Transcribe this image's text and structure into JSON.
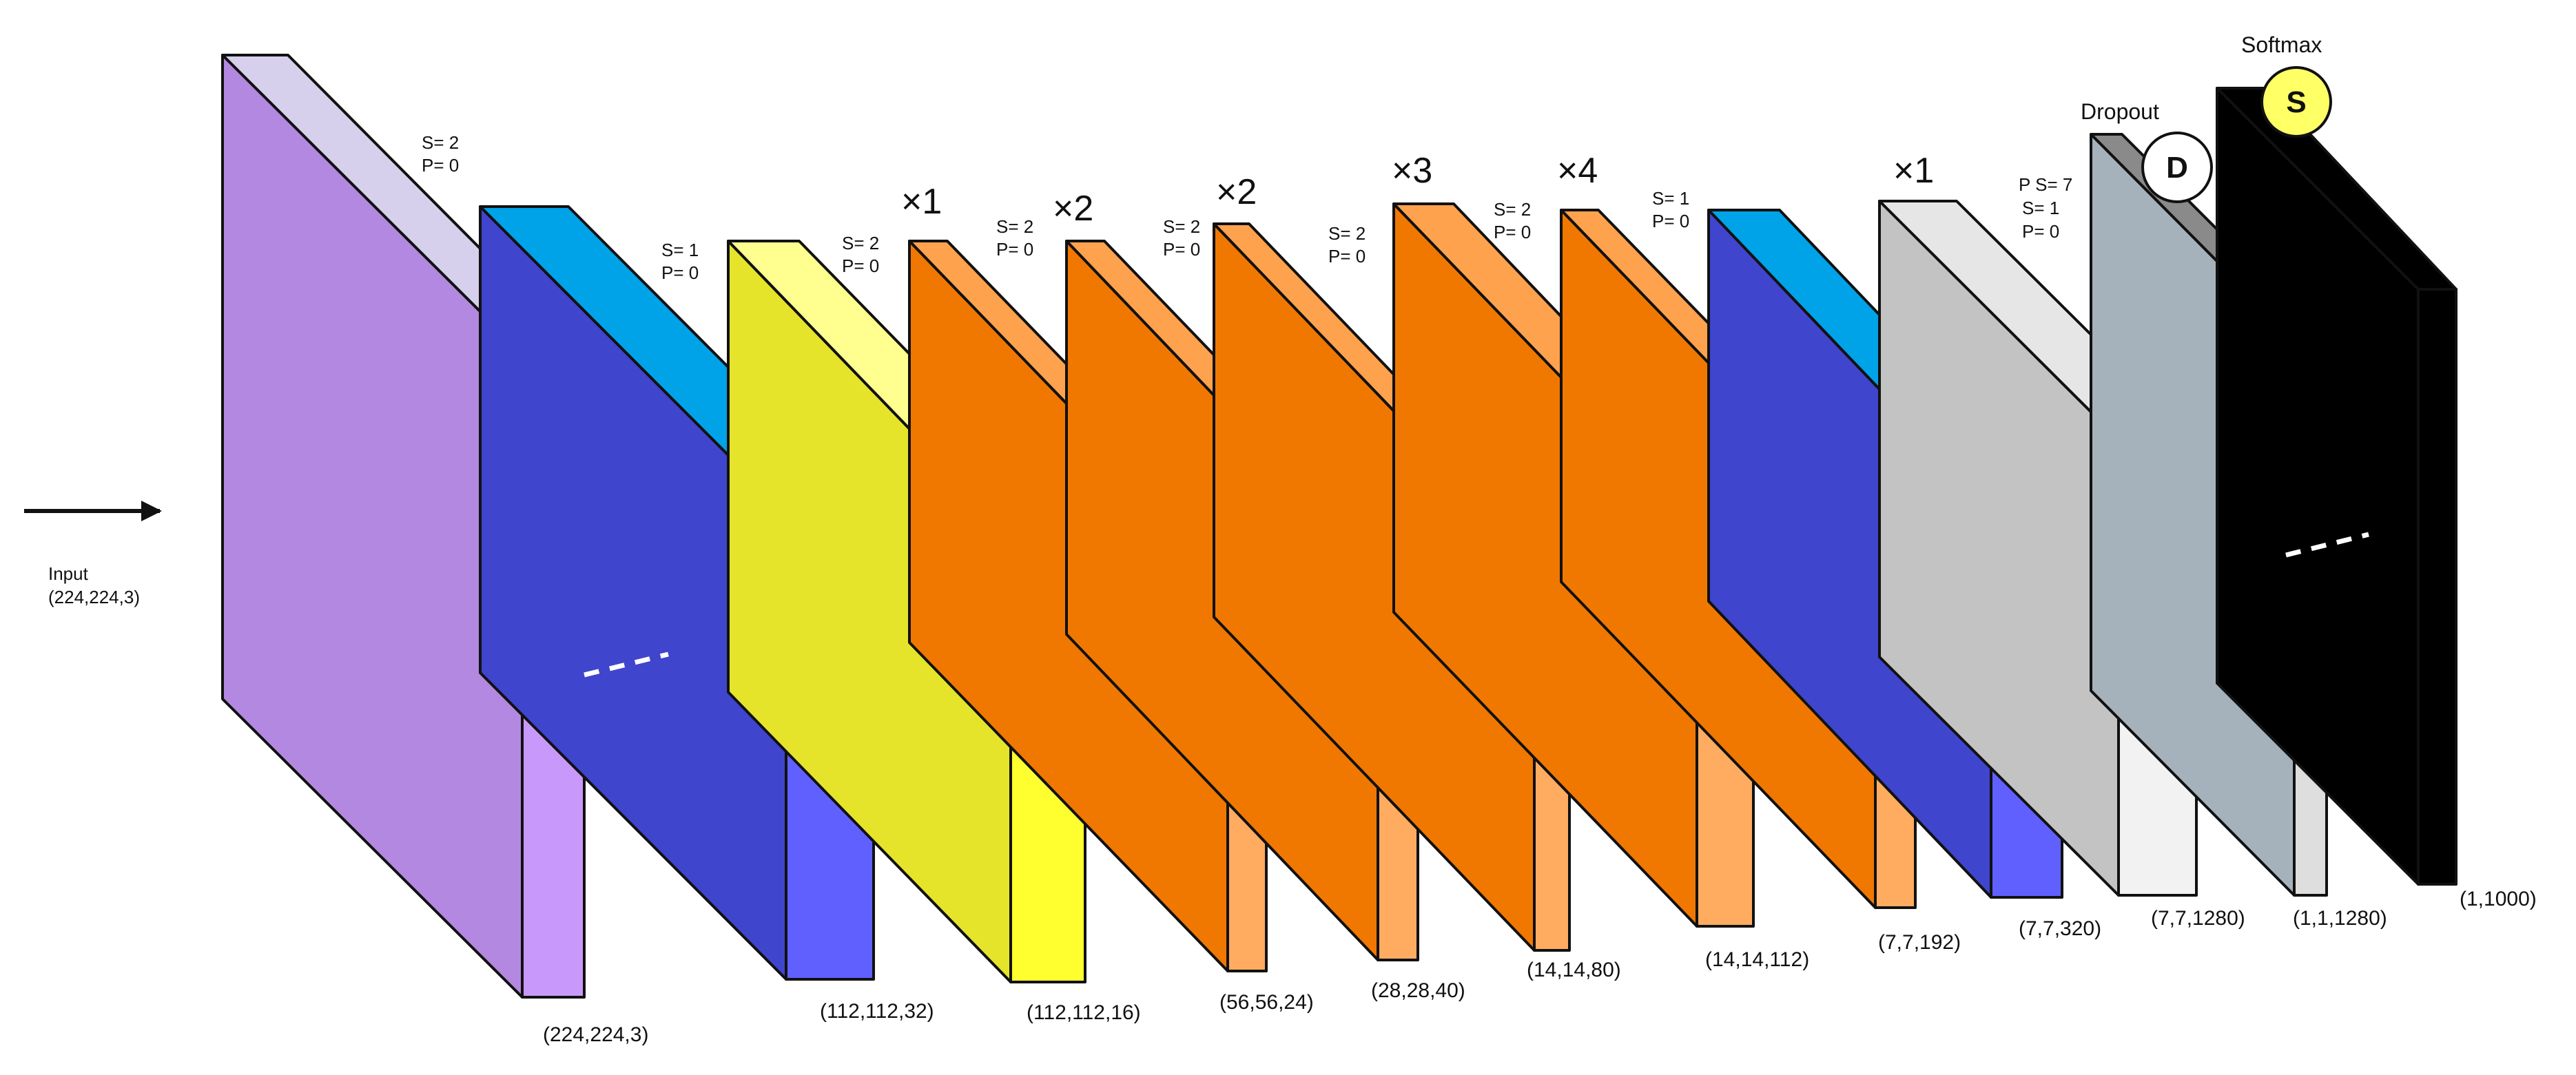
{
  "input": {
    "label": "Input",
    "shape": "(224,224,3)"
  },
  "layers": [
    {
      "id": "l0",
      "front": "#b388e0",
      "top": "#d6d0ec",
      "side": "#c899fa",
      "dim": "(224,224,3)",
      "params": [
        "S= 2",
        "P= 0"
      ]
    },
    {
      "id": "l1",
      "front": "#3f45cc",
      "top": "#00a2e8",
      "side": "#6060ff",
      "dim": "(112,112,32)",
      "params": [
        "S= 1",
        "P= 0"
      ]
    },
    {
      "id": "l2",
      "front": "#e5e42b",
      "top": "#ffff90",
      "side": "#ffff30",
      "dim": "(112,112,16)",
      "params": [
        "S= 2",
        "P= 0"
      ],
      "repeat": "×1"
    },
    {
      "id": "l3",
      "front": "#f07800",
      "top": "#ffa24d",
      "side": "#ffac60",
      "dim": "(56,56,24)",
      "params": [
        "S= 2",
        "P= 0"
      ],
      "repeat": "×2"
    },
    {
      "id": "l4",
      "front": "#f07800",
      "top": "#ffa24d",
      "side": "#ffac60",
      "dim": "(28,28,40)",
      "params": [
        "S= 2",
        "P= 0"
      ],
      "repeat": "×2"
    },
    {
      "id": "l5",
      "front": "#f07800",
      "top": "#ffa24d",
      "side": "#ffac60",
      "dim": "(14,14,80)",
      "params": [
        "S= 2",
        "P= 0"
      ],
      "repeat": "×3"
    },
    {
      "id": "l6",
      "front": "#f07800",
      "top": "#ffa24d",
      "side": "#ffac60",
      "dim": "(14,14,112)",
      "params": [
        "S= 2",
        "P= 0"
      ],
      "repeat": "×4"
    },
    {
      "id": "l7",
      "front": "#f07800",
      "top": "#ffa24d",
      "side": "#ffac60",
      "dim": "(7,7,192)",
      "params": [
        "S= 1",
        "P= 0"
      ]
    },
    {
      "id": "l8",
      "front": "#3f45cc",
      "top": "#00a2e8",
      "side": "#6060ff",
      "dim": "(7,7,320)",
      "params": [
        "P S= 7",
        "S= 1",
        "P= 0"
      ],
      "repeat": "×1"
    },
    {
      "id": "l9",
      "front": "#c3c3c3",
      "top": "#e6e6e6",
      "side": "#f2f2f2",
      "dim": "(7,7,1280)",
      "params": [],
      "title": "Dropout",
      "circle": "D",
      "circle_fill": "#ffffff"
    },
    {
      "id": "l10",
      "front": "#a6b2bb",
      "top": "#8a8a8a",
      "side": "#dedede",
      "dim": "(1,1,1280)",
      "params": [],
      "title": "Softmax",
      "circle": "S",
      "circle_fill": "#ffff66"
    },
    {
      "id": "l11",
      "dim": "(1,1000)"
    }
  ]
}
